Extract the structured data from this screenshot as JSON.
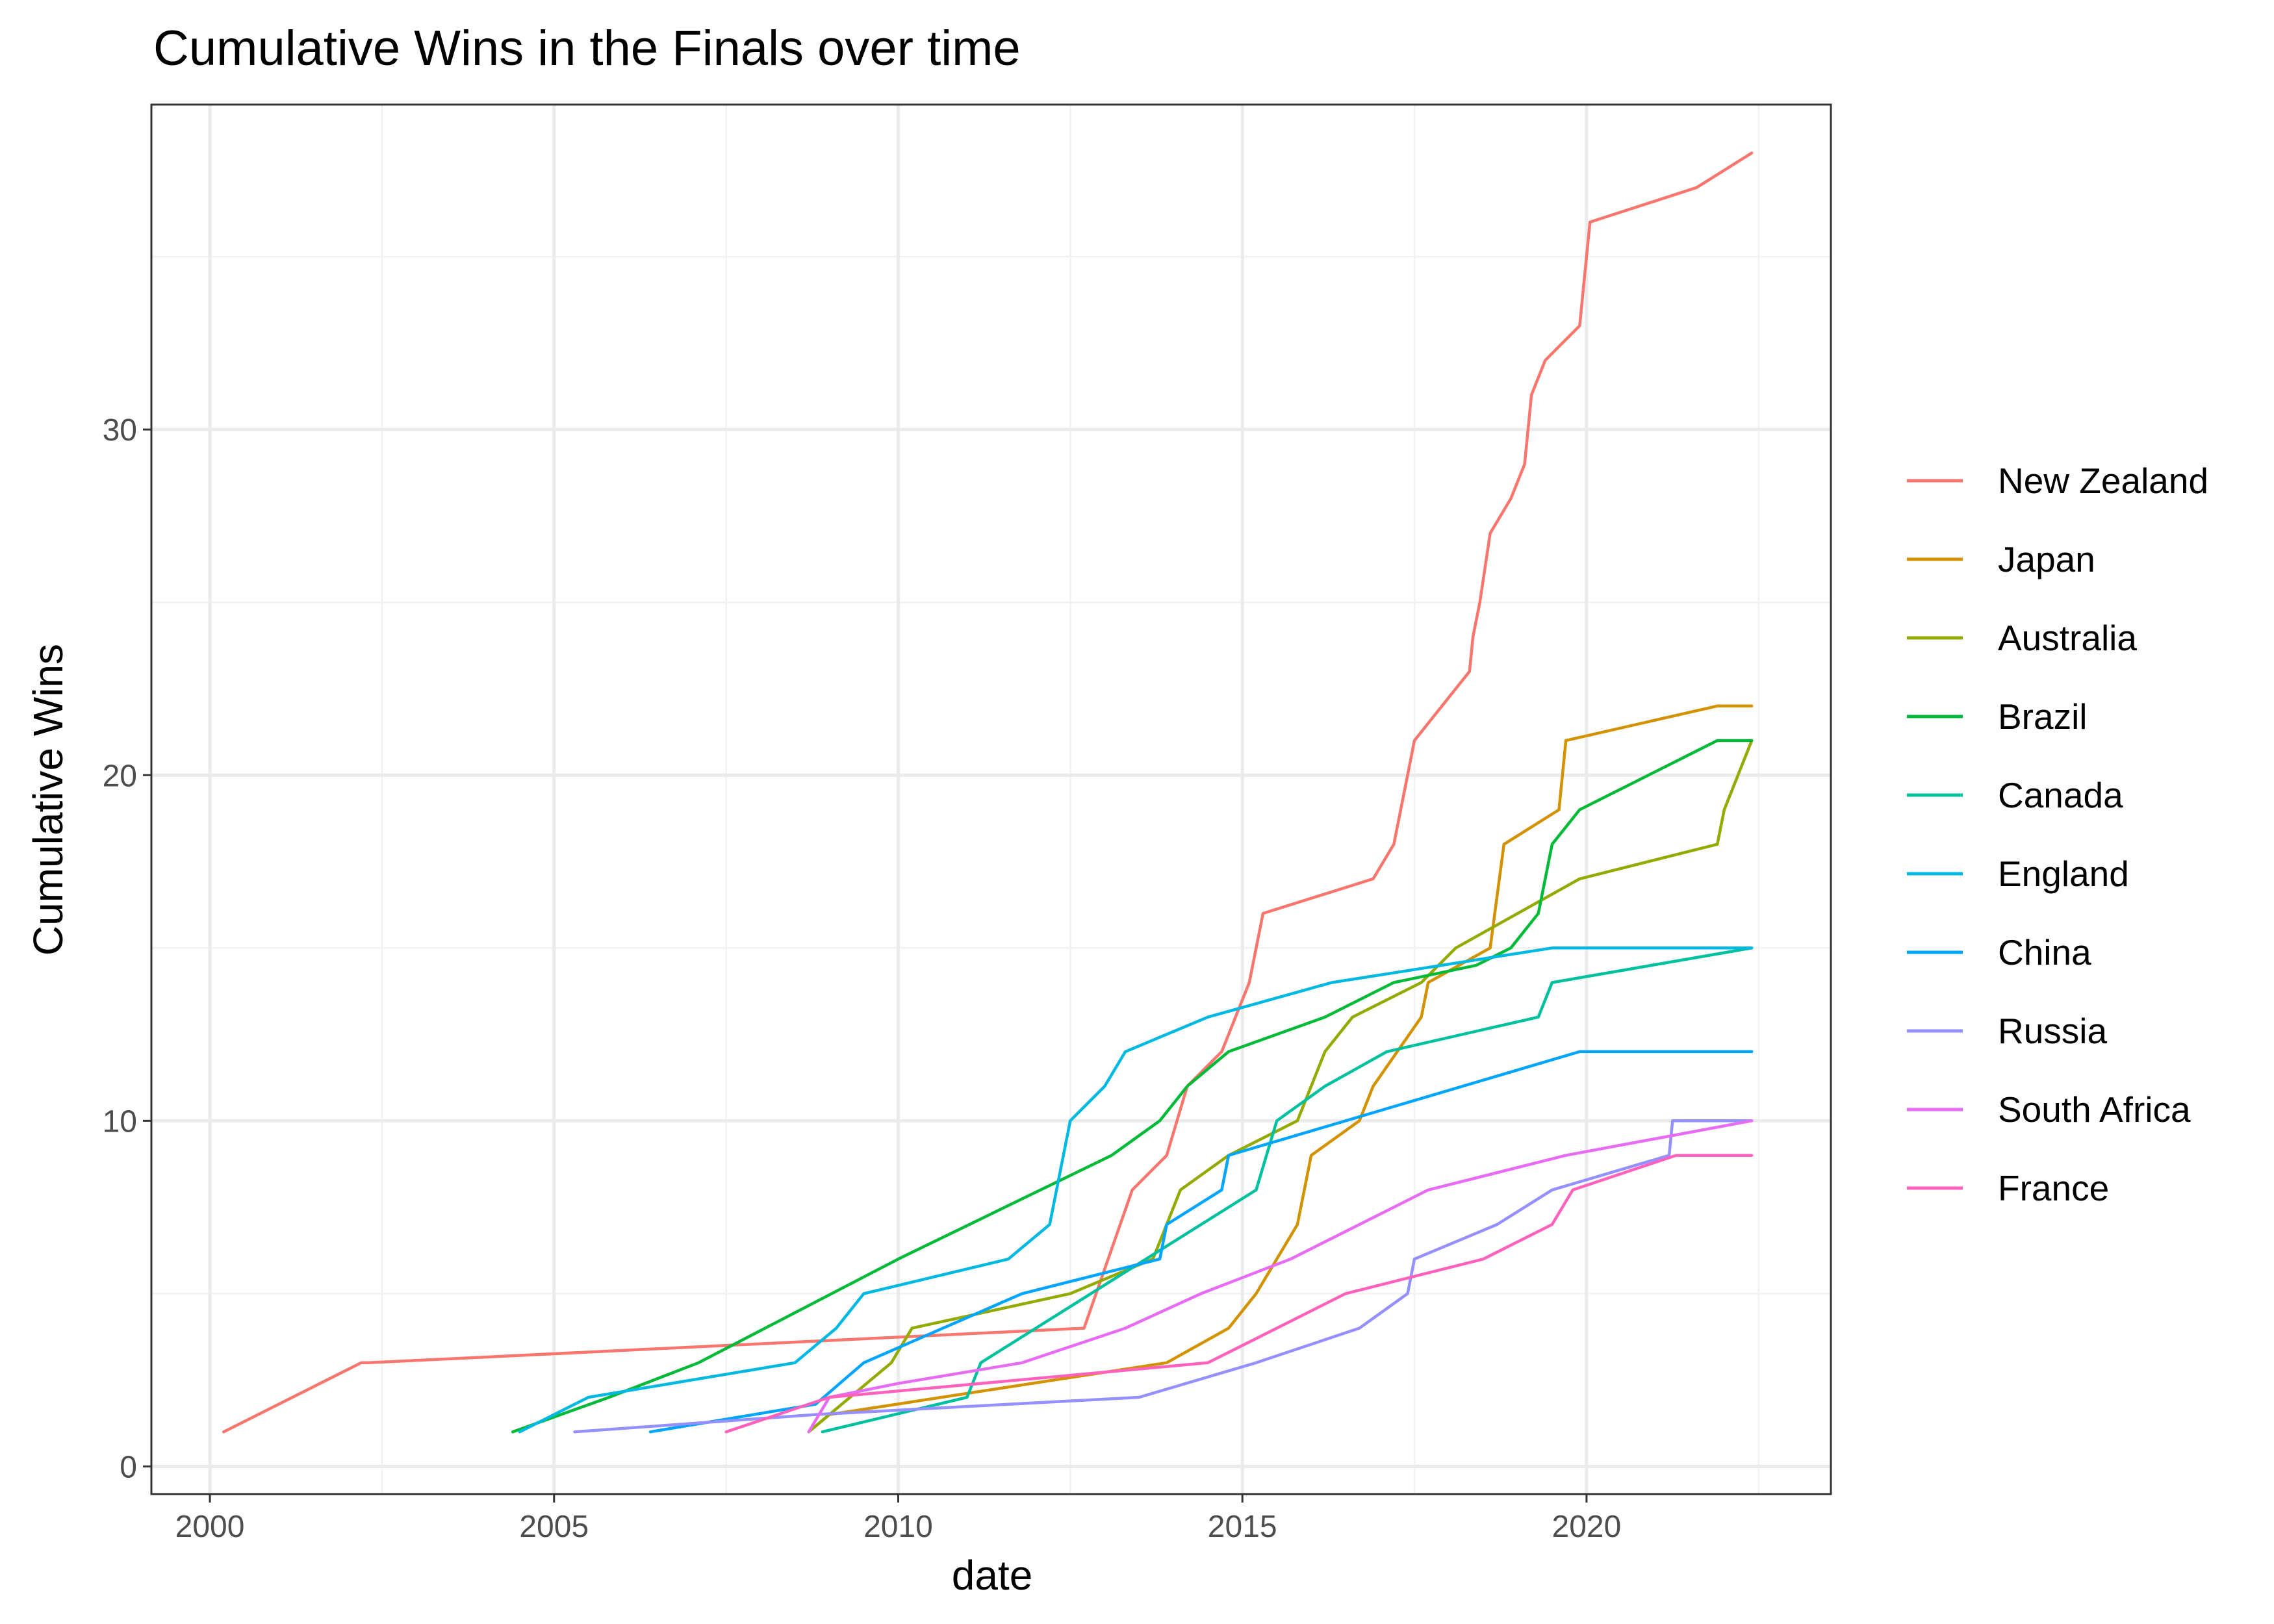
{
  "chart_data": {
    "type": "line",
    "title": "Cumulative Wins in the Finals over time",
    "xlabel": "date",
    "ylabel": "Cumulative Wins",
    "xlim": [
      1999.15,
      2023.55
    ],
    "ylim": [
      -0.8,
      39.4
    ],
    "x_ticks": [
      2000,
      2005,
      2010,
      2015,
      2020
    ],
    "y_ticks": [
      0,
      10,
      20,
      30
    ],
    "x_tick_labels": [
      "2000",
      "2005",
      "2010",
      "2015",
      "2020"
    ],
    "y_tick_labels": [
      "0",
      "10",
      "20",
      "30"
    ],
    "grid": true,
    "legend_position": "right",
    "series": [
      {
        "name": "New Zealand",
        "color": "#F8766D",
        "x": [
          2000.2,
          2002.2,
          2002.3,
          2012.7,
          2013.4,
          2013.9,
          2014.2,
          2014.7,
          2015.1,
          2015.3,
          2016.9,
          2017.2,
          2017.4,
          2017.5,
          2017.9,
          2018.3,
          2018.35,
          2018.45,
          2018.6,
          2018.9,
          2019.1,
          2019.15,
          2019.2,
          2019.4,
          2019.9,
          2019.95,
          2020.0,
          2020.05,
          2021.6,
          2022.4
        ],
        "y": [
          1,
          3,
          3,
          4,
          8,
          9,
          11,
          12,
          14,
          16,
          17,
          18,
          20,
          21,
          22,
          23,
          24,
          25,
          27,
          28,
          29,
          30,
          31,
          32,
          33,
          34,
          35,
          36,
          37,
          38
        ]
      },
      {
        "name": "Japan",
        "color": "#D39200",
        "x": [
          2008.7,
          2009.0,
          2013.9,
          2014.8,
          2015.2,
          2015.8,
          2016.0,
          2016.7,
          2016.9,
          2017.6,
          2017.7,
          2018.6,
          2018.8,
          2019.6,
          2019.7,
          2021.9,
          2022.4
        ],
        "y": [
          1,
          1.5,
          3,
          4,
          5,
          7,
          9,
          10,
          11,
          13,
          14,
          15,
          18,
          19,
          21,
          22,
          22
        ]
      },
      {
        "name": "Australia",
        "color": "#93AA00",
        "x": [
          2008.7,
          2009.9,
          2010.2,
          2012.5,
          2013.7,
          2014.1,
          2014.8,
          2015.8,
          2016.2,
          2016.6,
          2017.6,
          2018.1,
          2019.9,
          2021.9,
          2022.0,
          2022.2,
          2022.4
        ],
        "y": [
          1,
          3,
          4,
          5,
          6,
          8,
          9,
          10,
          12,
          13,
          14,
          15,
          17,
          18,
          19,
          20,
          21
        ]
      },
      {
        "name": "Brazil",
        "color": "#00BA38",
        "x": [
          2004.4,
          2005.8,
          2007.1,
          2010.0,
          2013.1,
          2013.8,
          2014.2,
          2014.8,
          2016.2,
          2017.2,
          2018.4,
          2018.9,
          2019.3,
          2019.5,
          2019.9,
          2021.9,
          2022.4
        ],
        "y": [
          1,
          2,
          3,
          6,
          9,
          10,
          11,
          12,
          13,
          14,
          14.5,
          15,
          16,
          18,
          19,
          21,
          21
        ]
      },
      {
        "name": "Canada",
        "color": "#00C19F",
        "x": [
          2008.9,
          2011.0,
          2011.2,
          2015.2,
          2015.5,
          2016.2,
          2017.1,
          2019.3,
          2019.5,
          2022.4
        ],
        "y": [
          1,
          2,
          3,
          8,
          10,
          11,
          12,
          13,
          14,
          15
        ]
      },
      {
        "name": "England",
        "color": "#00B9E3",
        "x": [
          2004.5,
          2005.5,
          2008.5,
          2009.1,
          2009.5,
          2011.6,
          2012.2,
          2012.4,
          2012.5,
          2013.0,
          2013.3,
          2014.5,
          2016.3,
          2019.5,
          2022.4
        ],
        "y": [
          1,
          2,
          3,
          4,
          5,
          6,
          7,
          9,
          10,
          11,
          12,
          13,
          14,
          15,
          15
        ]
      },
      {
        "name": "China",
        "color": "#00A5FF",
        "x": [
          2006.4,
          2008.8,
          2009.5,
          2011.8,
          2013.8,
          2013.9,
          2014.7,
          2014.8,
          2019.9,
          2022.4
        ],
        "y": [
          1,
          1.8,
          3,
          5,
          6,
          7,
          8,
          9,
          12,
          12
        ]
      },
      {
        "name": "Russia",
        "color": "#9590FF",
        "x": [
          2005.3,
          2008.8,
          2013.5,
          2015.2,
          2016.7,
          2017.4,
          2017.5,
          2018.7,
          2019.5,
          2021.2,
          2021.25,
          2022.4
        ],
        "y": [
          1,
          1.5,
          2,
          3,
          4,
          5,
          6,
          7,
          8,
          9,
          10,
          10
        ]
      },
      {
        "name": "South Africa",
        "color": "#E76BF3",
        "x": [
          2008.7,
          2009.0,
          2010.0,
          2011.8,
          2013.3,
          2014.4,
          2015.7,
          2017.7,
          2019.7,
          2022.4
        ],
        "y": [
          1,
          2,
          2.4,
          3,
          4,
          5,
          6,
          8,
          9,
          10
        ]
      },
      {
        "name": "France",
        "color": "#FF62BC",
        "x": [
          2007.5,
          2009.0,
          2014.5,
          2016.5,
          2018.5,
          2019.5,
          2019.8,
          2021.3,
          2022.4
        ],
        "y": [
          1,
          2,
          3,
          5,
          6,
          7,
          8,
          9,
          9
        ]
      }
    ]
  }
}
